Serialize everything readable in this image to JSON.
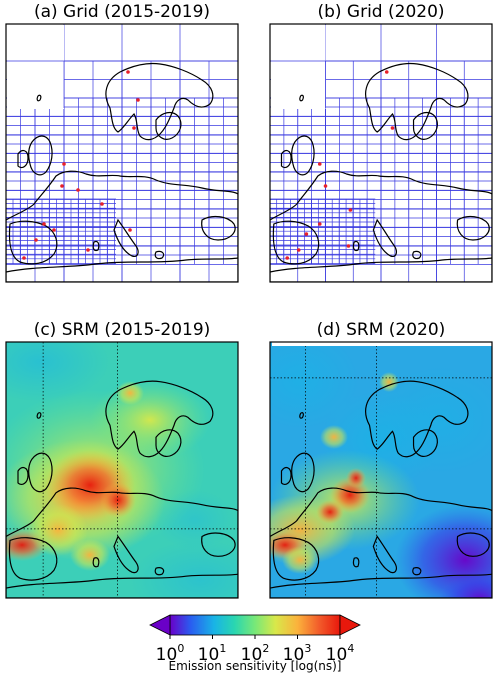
{
  "panels": [
    {
      "id": "a",
      "title": "(a) Grid (2015-2019)"
    },
    {
      "id": "b",
      "title": "(b) Grid (2020)"
    },
    {
      "id": "c",
      "title": "(c) SRM (2015-2019)"
    },
    {
      "id": "d",
      "title": "(d) SRM (2020)"
    }
  ],
  "colorbar": {
    "ticks": [
      {
        "base": "10",
        "exp": "0"
      },
      {
        "base": "10",
        "exp": "1"
      },
      {
        "base": "10",
        "exp": "2"
      },
      {
        "base": "10",
        "exp": "3"
      },
      {
        "base": "10",
        "exp": "4"
      }
    ],
    "label": "Emission sensitivity [log(ns)]",
    "colors": [
      "#6a00c8",
      "#2a5cf0",
      "#19b4e6",
      "#2ad6b0",
      "#78e878",
      "#d8e84a",
      "#fbb23c",
      "#f25a2a",
      "#e8180c"
    ]
  },
  "colors": {
    "grid_line": "#3a3ae0",
    "station": "#e8202a",
    "coast": "#000000"
  }
}
